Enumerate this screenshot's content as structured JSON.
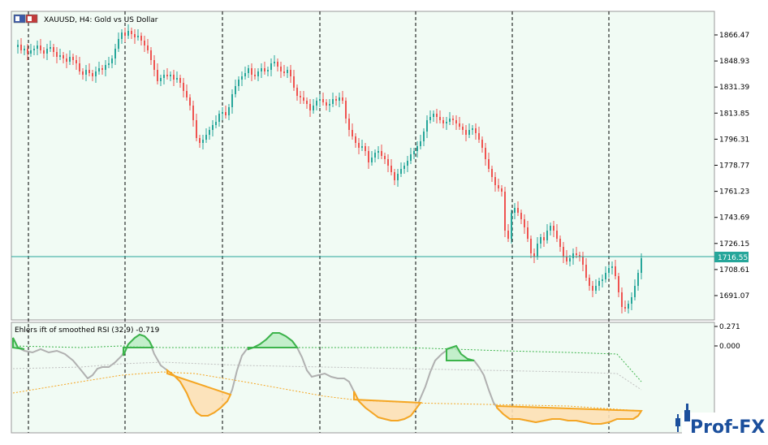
{
  "window": {
    "title": "XAUUSD, H4:  Gold vs US Dollar",
    "flag_icon": "currency-flags-icon"
  },
  "price_axis": {
    "labels": [
      "1866.47",
      "1848.93",
      "1831.39",
      "1813.85",
      "1796.31",
      "1778.77",
      "1761.23",
      "1743.69",
      "1726.15",
      "1708.61",
      "1691.07"
    ],
    "current_price": "1716.55"
  },
  "indicator": {
    "title": "Ehlers ift of smoothed RSI (32,9) -0.719",
    "axis_labels": [
      "0.271",
      "0.000"
    ]
  },
  "colors": {
    "background": "#f1fbf4",
    "bull_candle": "#26a69a",
    "bear_candle": "#ef5350",
    "price_line": "#26a69a",
    "indicator_green": "#3cb44b",
    "indicator_orange": "#f5a623",
    "indicator_neutral": "#b0b0b0"
  },
  "logo": {
    "text": "Prof-FX"
  }
}
